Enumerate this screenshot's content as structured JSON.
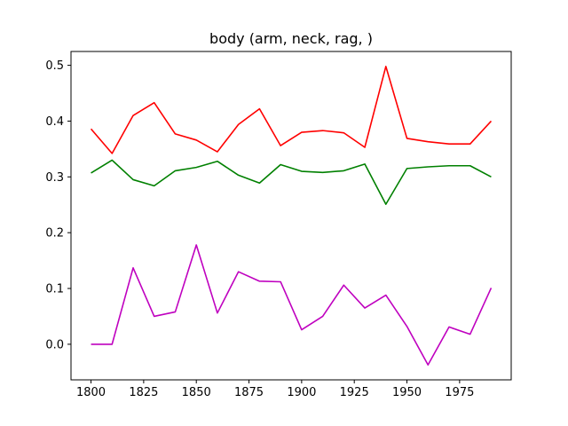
{
  "chart_data": {
    "type": "line",
    "title": "body (arm, neck, rag, )",
    "xlabel": "",
    "ylabel": "",
    "x": [
      1800,
      1810,
      1820,
      1830,
      1840,
      1850,
      1860,
      1870,
      1880,
      1890,
      1900,
      1910,
      1920,
      1930,
      1940,
      1950,
      1960,
      1970,
      1980,
      1990
    ],
    "series": [
      {
        "color": "#ff0000",
        "values": [
          0.386,
          0.342,
          0.41,
          0.433,
          0.377,
          0.366,
          0.345,
          0.394,
          0.422,
          0.356,
          0.38,
          0.383,
          0.379,
          0.353,
          0.498,
          0.369,
          0.363,
          0.359,
          0.359,
          0.4
        ]
      },
      {
        "color": "#008000",
        "values": [
          0.307,
          0.33,
          0.295,
          0.284,
          0.311,
          0.317,
          0.328,
          0.303,
          0.289,
          0.322,
          0.31,
          0.308,
          0.311,
          0.323,
          0.251,
          0.315,
          0.318,
          0.32,
          0.32,
          0.3
        ]
      },
      {
        "color": "#bf00bf",
        "values": [
          0.0,
          0.0,
          0.137,
          0.05,
          0.058,
          0.178,
          0.056,
          0.13,
          0.113,
          0.112,
          0.026,
          0.05,
          0.106,
          0.065,
          0.088,
          0.032,
          -0.037,
          0.031,
          0.018,
          0.101
        ]
      }
    ],
    "xlim": [
      1790.5,
      1999.5
    ],
    "ylim": [
      -0.0638,
      0.5248
    ],
    "xticks": [
      1800,
      1825,
      1850,
      1875,
      1900,
      1925,
      1950,
      1975
    ],
    "xtick_labels": [
      "1800",
      "1825",
      "1850",
      "1875",
      "1900",
      "1925",
      "1950",
      "1975"
    ],
    "yticks": [
      0.0,
      0.1,
      0.2,
      0.3,
      0.4,
      0.5
    ],
    "ytick_labels": [
      "0.0",
      "0.1",
      "0.2",
      "0.3",
      "0.4",
      "0.5"
    ],
    "grid": false,
    "legend": "none"
  }
}
